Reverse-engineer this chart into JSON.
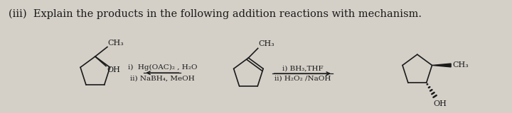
{
  "title": "(iii)  Explain the products in the following addition reactions with mechanism.",
  "bg_color": "#d4d0c8",
  "text_color": "#1a1a1a",
  "title_fontsize": 10.5,
  "rxn1_r1": "i)  Hg(OAC)₂ , H₂O",
  "rxn1_r2": "ii) NaBH₄, MeOH",
  "rxn2_r1": "i) BH₃,THF",
  "rxn2_r2": "ii) H₂O₂ /NaOH"
}
